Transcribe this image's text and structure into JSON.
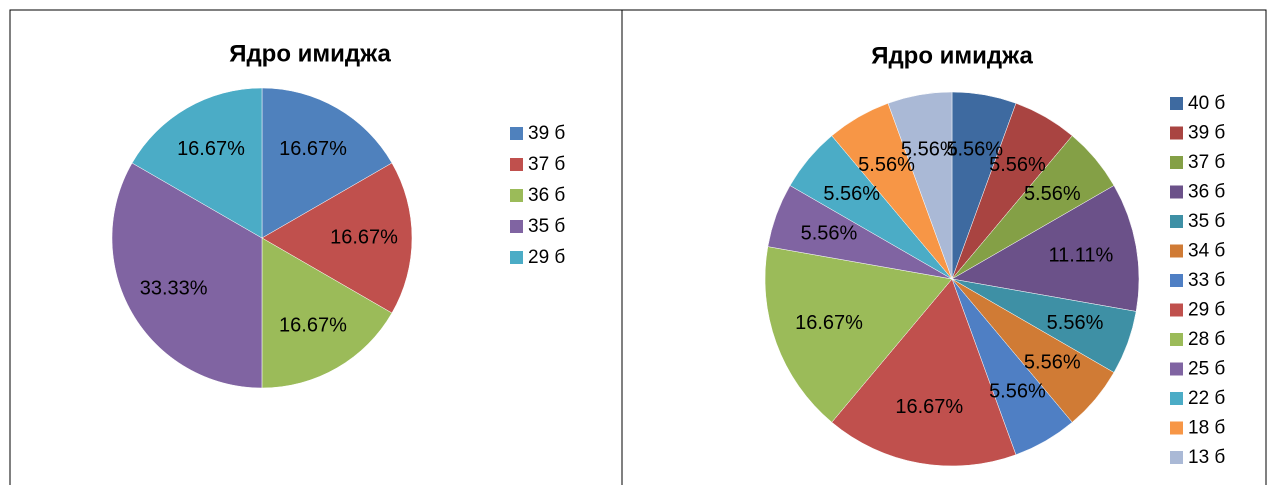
{
  "chart_data": [
    {
      "type": "pie",
      "title": "Ядро имиджа",
      "categories": [
        "39 б",
        "37 б",
        "36 б",
        "35 б",
        "29 б"
      ],
      "values": [
        16.67,
        16.67,
        16.67,
        33.33,
        16.67
      ],
      "value_labels": [
        "16.67%",
        "16.67%",
        "16.67%",
        "33.33%",
        "16.67%"
      ],
      "colors": [
        "#4f81bd",
        "#c0504d",
        "#9bbb59",
        "#8064a2",
        "#4bacc6"
      ],
      "legend": "right"
    },
    {
      "type": "pie",
      "title": "Ядро имиджа",
      "categories": [
        "40 б",
        "39 б",
        "37 б",
        "36 б",
        "35 б",
        "34 б",
        "33 б",
        "29 б",
        "28 б",
        "25 б",
        "22 б",
        "18 б",
        "13 б"
      ],
      "values": [
        5.56,
        5.56,
        5.56,
        11.11,
        5.56,
        5.56,
        5.56,
        16.67,
        16.67,
        5.56,
        5.56,
        5.56,
        5.56
      ],
      "value_labels": [
        "5.56%",
        "5.56%",
        "5.56%",
        "11.11%",
        "5.56%",
        "5.56%",
        "5.56%",
        "16.67%",
        "16.67%",
        "5.56%",
        "5.56%",
        "5.56%",
        "5.56%"
      ],
      "colors": [
        "#3e6aa0",
        "#a94441",
        "#84a046",
        "#6b5189",
        "#3e90a5",
        "#d07b35",
        "#4f7fc4",
        "#c0504d",
        "#9bbb59",
        "#8064a2",
        "#4bacc6",
        "#f79646",
        "#aab9d6"
      ],
      "legend": "right"
    }
  ]
}
